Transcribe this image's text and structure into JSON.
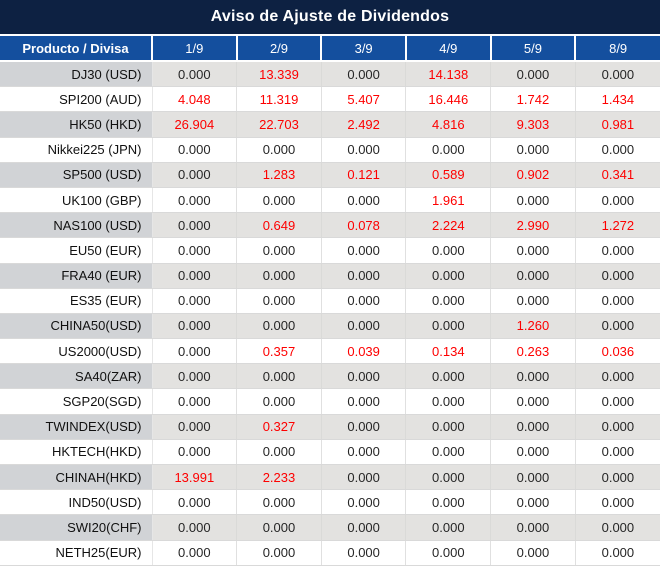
{
  "title": "Aviso de Ajuste de Dividendos",
  "table": {
    "product_header": "Producto / Divisa",
    "date_headers": [
      "1/9",
      "2/9",
      "3/9",
      "4/9",
      "5/9",
      "8/9"
    ],
    "rows": [
      {
        "product": "DJ30 (USD)",
        "values": [
          "0.000",
          "13.339",
          "0.000",
          "14.138",
          "0.000",
          "0.000"
        ]
      },
      {
        "product": "SPI200 (AUD)",
        "values": [
          "4.048",
          "11.319",
          "5.407",
          "16.446",
          "1.742",
          "1.434"
        ]
      },
      {
        "product": "HK50 (HKD)",
        "values": [
          "26.904",
          "22.703",
          "2.492",
          "4.816",
          "9.303",
          "0.981"
        ]
      },
      {
        "product": "Nikkei225 (JPN)",
        "values": [
          "0.000",
          "0.000",
          "0.000",
          "0.000",
          "0.000",
          "0.000"
        ]
      },
      {
        "product": "SP500 (USD)",
        "values": [
          "0.000",
          "1.283",
          "0.121",
          "0.589",
          "0.902",
          "0.341"
        ]
      },
      {
        "product": "UK100 (GBP)",
        "values": [
          "0.000",
          "0.000",
          "0.000",
          "1.961",
          "0.000",
          "0.000"
        ]
      },
      {
        "product": "NAS100 (USD)",
        "values": [
          "0.000",
          "0.649",
          "0.078",
          "2.224",
          "2.990",
          "1.272"
        ]
      },
      {
        "product": "EU50 (EUR)",
        "values": [
          "0.000",
          "0.000",
          "0.000",
          "0.000",
          "0.000",
          "0.000"
        ]
      },
      {
        "product": "FRA40 (EUR)",
        "values": [
          "0.000",
          "0.000",
          "0.000",
          "0.000",
          "0.000",
          "0.000"
        ]
      },
      {
        "product": "ES35 (EUR)",
        "values": [
          "0.000",
          "0.000",
          "0.000",
          "0.000",
          "0.000",
          "0.000"
        ]
      },
      {
        "product": "CHINA50(USD)",
        "values": [
          "0.000",
          "0.000",
          "0.000",
          "0.000",
          "1.260",
          "0.000"
        ]
      },
      {
        "product": "US2000(USD)",
        "values": [
          "0.000",
          "0.357",
          "0.039",
          "0.134",
          "0.263",
          "0.036"
        ]
      },
      {
        "product": "SA40(ZAR)",
        "values": [
          "0.000",
          "0.000",
          "0.000",
          "0.000",
          "0.000",
          "0.000"
        ]
      },
      {
        "product": "SGP20(SGD)",
        "values": [
          "0.000",
          "0.000",
          "0.000",
          "0.000",
          "0.000",
          "0.000"
        ]
      },
      {
        "product": "TWINDEX(USD)",
        "values": [
          "0.000",
          "0.327",
          "0.000",
          "0.000",
          "0.000",
          "0.000"
        ]
      },
      {
        "product": "HKTECH(HKD)",
        "values": [
          "0.000",
          "0.000",
          "0.000",
          "0.000",
          "0.000",
          "0.000"
        ]
      },
      {
        "product": "CHINAH(HKD)",
        "values": [
          "13.991",
          "2.233",
          "0.000",
          "0.000",
          "0.000",
          "0.000"
        ]
      },
      {
        "product": "IND50(USD)",
        "values": [
          "0.000",
          "0.000",
          "0.000",
          "0.000",
          "0.000",
          "0.000"
        ]
      },
      {
        "product": "SWI20(CHF)",
        "values": [
          "0.000",
          "0.000",
          "0.000",
          "0.000",
          "0.000",
          "0.000"
        ]
      },
      {
        "product": "NETH25(EUR)",
        "values": [
          "0.000",
          "0.000",
          "0.000",
          "0.000",
          "0.000",
          "0.000"
        ]
      }
    ]
  },
  "colors": {
    "title_bg": "#0d2142",
    "header_bg": "#144f9e",
    "alt_row_product_bg": "#d1d3d6",
    "alt_row_value_bg": "#e3e2e0",
    "value_zero": "#262626",
    "value_nonzero": "#fe0000"
  },
  "chart_data": {
    "type": "table",
    "title": "Aviso de Ajuste de Dividendos",
    "columns": [
      "Producto / Divisa",
      "1/9",
      "2/9",
      "3/9",
      "4/9",
      "5/9",
      "8/9"
    ],
    "rows": [
      [
        "DJ30 (USD)",
        0.0,
        13.339,
        0.0,
        14.138,
        0.0,
        0.0
      ],
      [
        "SPI200 (AUD)",
        4.048,
        11.319,
        5.407,
        16.446,
        1.742,
        1.434
      ],
      [
        "HK50 (HKD)",
        26.904,
        22.703,
        2.492,
        4.816,
        9.303,
        0.981
      ],
      [
        "Nikkei225 (JPN)",
        0.0,
        0.0,
        0.0,
        0.0,
        0.0,
        0.0
      ],
      [
        "SP500 (USD)",
        0.0,
        1.283,
        0.121,
        0.589,
        0.902,
        0.341
      ],
      [
        "UK100 (GBP)",
        0.0,
        0.0,
        0.0,
        1.961,
        0.0,
        0.0
      ],
      [
        "NAS100 (USD)",
        0.0,
        0.649,
        0.078,
        2.224,
        2.99,
        1.272
      ],
      [
        "EU50 (EUR)",
        0.0,
        0.0,
        0.0,
        0.0,
        0.0,
        0.0
      ],
      [
        "FRA40 (EUR)",
        0.0,
        0.0,
        0.0,
        0.0,
        0.0,
        0.0
      ],
      [
        "ES35 (EUR)",
        0.0,
        0.0,
        0.0,
        0.0,
        0.0,
        0.0
      ],
      [
        "CHINA50(USD)",
        0.0,
        0.0,
        0.0,
        0.0,
        1.26,
        0.0
      ],
      [
        "US2000(USD)",
        0.0,
        0.357,
        0.039,
        0.134,
        0.263,
        0.036
      ],
      [
        "SA40(ZAR)",
        0.0,
        0.0,
        0.0,
        0.0,
        0.0,
        0.0
      ],
      [
        "SGP20(SGD)",
        0.0,
        0.0,
        0.0,
        0.0,
        0.0,
        0.0
      ],
      [
        "TWINDEX(USD)",
        0.0,
        0.327,
        0.0,
        0.0,
        0.0,
        0.0
      ],
      [
        "HKTECH(HKD)",
        0.0,
        0.0,
        0.0,
        0.0,
        0.0,
        0.0
      ],
      [
        "CHINAH(HKD)",
        13.991,
        2.233,
        0.0,
        0.0,
        0.0,
        0.0
      ],
      [
        "IND50(USD)",
        0.0,
        0.0,
        0.0,
        0.0,
        0.0,
        0.0
      ],
      [
        "SWI20(CHF)",
        0.0,
        0.0,
        0.0,
        0.0,
        0.0,
        0.0
      ],
      [
        "NETH25(EUR)",
        0.0,
        0.0,
        0.0,
        0.0,
        0.0,
        0.0
      ]
    ],
    "value_color_rule": "zero values black, non-zero values red",
    "layout": "title bar dark navy, header row blue, alternating gray/white rows"
  }
}
